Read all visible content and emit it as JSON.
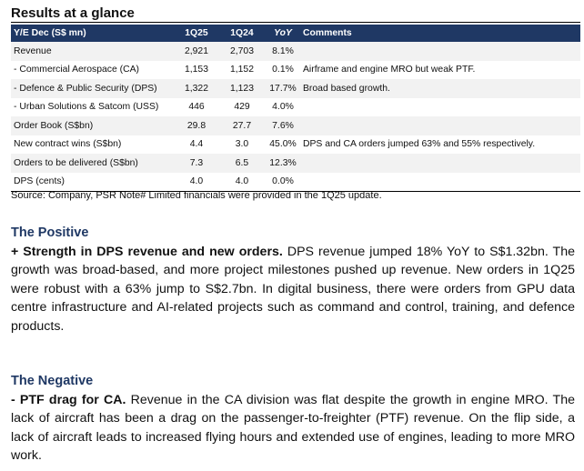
{
  "title": "Results at a glance",
  "table": {
    "headers": [
      "Y/E Dec (S$ mn)",
      "1Q25",
      "1Q24",
      "YoY",
      "Comments"
    ],
    "rows": [
      [
        "Revenue",
        "2,921",
        "2,703",
        "8.1%",
        ""
      ],
      [
        "- Commercial Aerospace (CA)",
        "1,153",
        "1,152",
        "0.1%",
        "Airframe and engine MRO but weak PTF."
      ],
      [
        "- Defence & Public Security (DPS)",
        "1,322",
        "1,123",
        "17.7%",
        "Broad based growth."
      ],
      [
        "- Urban Solutions & Satcom (USS)",
        "446",
        "429",
        "4.0%",
        ""
      ],
      [
        "Order Book (S$bn)",
        "29.8",
        "27.7",
        "7.6%",
        ""
      ],
      [
        "New contract wins (S$bn)",
        "4.4",
        "3.0",
        "45.0%",
        "DPS and CA orders jumped 63% and 55% respectively."
      ],
      [
        "Orders to be delivered (S$bn)",
        "7.3",
        "6.5",
        "12.3%",
        ""
      ],
      [
        "DPS (cents)",
        "4.0",
        "4.0",
        "0.0%",
        ""
      ]
    ]
  },
  "source": "Source: Company, PSR  Note# Limited financials were provided in the 1Q25 update.",
  "positive": {
    "heading": "The Positive",
    "lead": "+ Strength in DPS revenue and new orders.",
    "body": " DPS revenue jumped 18% YoY to S$1.32bn. The growth was broad-based, and more project milestones pushed up revenue. New orders in 1Q25 were robust with a 63% jump to S$2.7bn. In digital business, there were orders from GPU data centre infrastructure and AI-related projects such as command and control, training, and defence products."
  },
  "negative": {
    "heading": "The Negative",
    "lead": "- PTF drag for CA.",
    "body": "  Revenue in the CA division was flat despite the growth in engine MRO. The lack of aircraft has been a drag on the passenger-to-freighter (PTF) revenue. On the flip side, a lack of aircraft leads to increased flying hours and extended use of engines, leading to more MRO work."
  }
}
